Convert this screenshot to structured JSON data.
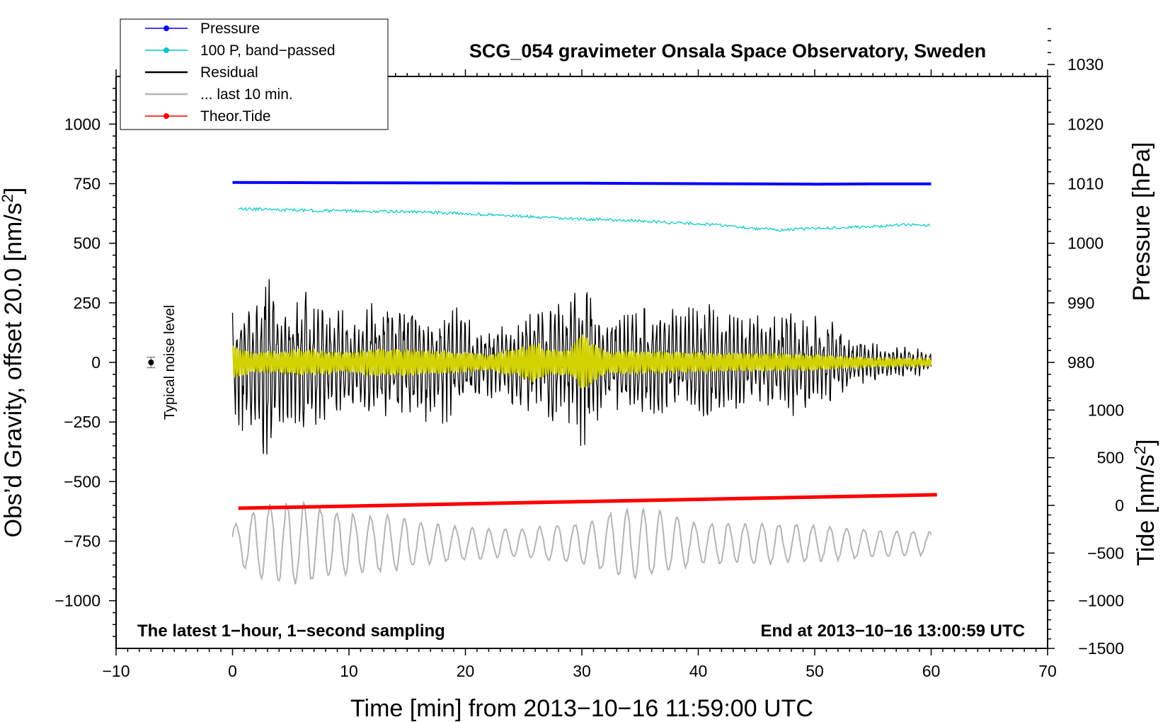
{
  "chart_data": {
    "type": "line",
    "title": "SCG_054 gravimeter Onsala Space Observatory, Sweden",
    "xlabel": "Time [min] from 2013−10−16 11:59:00 UTC",
    "ylabel_left": "Obs’d Gravity, offset 20.0 [nm/s",
    "ylabel_left_sup": "2",
    "ylabel_left_end": "]",
    "ylabel_right_pressure": "Pressure [hPa]",
    "ylabel_right_tide": "Tide [nm/s",
    "ylabel_right_tide_sup": "2",
    "ylabel_right_tide_end": "]",
    "xlim": [
      -10,
      70
    ],
    "ylim_left": [
      -1200,
      1200
    ],
    "x_ticks": [
      -10,
      0,
      10,
      20,
      30,
      40,
      50,
      60,
      70
    ],
    "x_tick_labels": [
      "−10",
      "0",
      "10",
      "20",
      "30",
      "40",
      "50",
      "60",
      "70"
    ],
    "y_left_ticks": [
      1000,
      750,
      500,
      250,
      0,
      -250,
      -500,
      -750,
      -1000
    ],
    "y_left_tick_labels": [
      "1000",
      "750",
      "500",
      "250",
      "0",
      "−250",
      "−500",
      "−750",
      "−1000"
    ],
    "pressure_axis": {
      "ticks": [
        1030,
        1020,
        1010,
        1000,
        990,
        980
      ],
      "tick_labels": [
        "1030",
        "1020",
        "1010",
        "1000",
        "990",
        "980"
      ],
      "ref_hpa": 1010,
      "ref_gravity": 750,
      "gravity_per_hpa": 25
    },
    "tide_axis": {
      "ticks": [
        1000,
        500,
        0,
        -500,
        -1000,
        -1500
      ],
      "tick_labels": [
        "1000",
        "500",
        "0",
        "−500",
        "−1000",
        "−1500"
      ],
      "gravity_at_zero": -600,
      "gravity_per_unit": 0.4
    },
    "annotation_left": "The latest 1−hour, 1−second sampling",
    "annotation_right": "End at 2013−10−16 13:00:59 UTC",
    "noise_label": "Typical noise level",
    "noise_marker": {
      "x": -7,
      "y": 0,
      "err": 22
    },
    "legend": [
      {
        "label": "Pressure",
        "color": "#0000ff",
        "marker": true
      },
      {
        "label": "100 P, band−passed",
        "color": "#00c8c8",
        "marker": true
      },
      {
        "label": "Residual",
        "color": "#000000",
        "marker": false
      },
      {
        "label": "... last 10 min.",
        "color": "#b4b4b4",
        "marker": false
      },
      {
        "label": "Theor.Tide",
        "color": "#ff0000",
        "marker": true
      }
    ],
    "series": [
      {
        "name": "Pressure",
        "color": "#0000ff",
        "axis": "left_offset",
        "x": [
          0,
          10,
          20,
          25,
          30,
          36,
          40,
          45,
          50,
          55,
          60
        ],
        "y": [
          755,
          754,
          753,
          752,
          752,
          751,
          750,
          749,
          748,
          749,
          749
        ]
      },
      {
        "name": "100 P, band-passed",
        "color": "#00c8c8",
        "axis": "left_offset",
        "x": [
          0.5,
          3,
          6,
          9,
          12,
          15,
          18,
          21,
          24,
          27,
          30,
          33,
          36,
          39,
          42,
          45,
          47,
          49,
          52,
          55,
          58,
          60
        ],
        "y": [
          645,
          642,
          638,
          636,
          634,
          632,
          628,
          622,
          615,
          607,
          601,
          598,
          591,
          584,
          576,
          562,
          556,
          560,
          566,
          570,
          578,
          576
        ]
      },
      {
        "name": "Residual",
        "color": "#000000",
        "axis": "left",
        "x_range": [
          0,
          60
        ],
        "envelope": {
          "x": [
            0,
            1,
            2,
            3,
            4,
            5,
            6,
            8,
            10,
            14,
            18,
            20,
            22,
            25,
            27,
            29,
            30,
            32,
            35,
            38,
            40,
            42,
            44,
            46,
            48,
            50,
            52,
            54,
            56,
            58,
            60
          ],
          "amp": [
            300,
            330,
            280,
            480,
            300,
            280,
            320,
            260,
            240,
            280,
            280,
            220,
            160,
            200,
            240,
            300,
            380,
            200,
            260,
            240,
            260,
            250,
            210,
            200,
            240,
            200,
            170,
            100,
            80,
            70,
            50
          ]
        }
      },
      {
        "name": "Bandpassed residual",
        "color": "#d2d200",
        "axis": "left",
        "x_range": [
          0,
          60
        ],
        "envelope": {
          "x": [
            0,
            1,
            2,
            4,
            6,
            10,
            12,
            15,
            20,
            22,
            25,
            26,
            27,
            29,
            30,
            32,
            35,
            40,
            45,
            50,
            55,
            60
          ],
          "amp": [
            80,
            55,
            45,
            50,
            60,
            45,
            60,
            60,
            45,
            35,
            70,
            95,
            55,
            60,
            130,
            55,
            50,
            45,
            40,
            35,
            20,
            15
          ]
        }
      },
      {
        "name": "Theor.Tide",
        "color": "#ff0000",
        "axis": "tide",
        "x": [
          0.5,
          60.5
        ],
        "y_tide": [
          -30,
          112
        ]
      },
      {
        "name": "... last 10 min.",
        "color": "#b4b4b4",
        "axis": "left",
        "x_range": [
          0,
          60
        ],
        "baseline": -760,
        "envelope": {
          "x": [
            0,
            3,
            6,
            9,
            14,
            18,
            24,
            30,
            34,
            36,
            40,
            46,
            50,
            55,
            60
          ],
          "amp": [
            80,
            170,
            180,
            140,
            120,
            80,
            60,
            90,
            160,
            150,
            90,
            90,
            80,
            60,
            50
          ]
        }
      }
    ]
  }
}
